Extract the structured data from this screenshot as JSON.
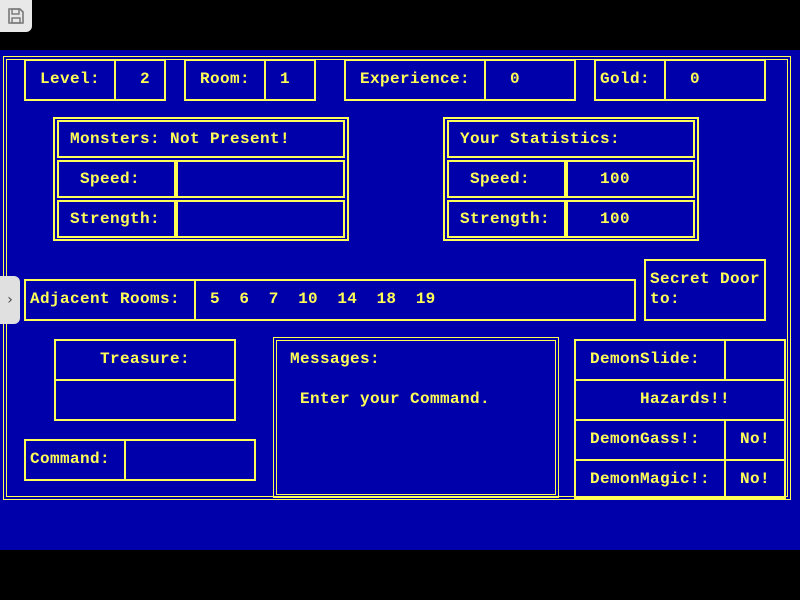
{
  "status": {
    "level_label": "Level:",
    "level": "2",
    "room_label": "Room:",
    "room": "1",
    "experience_label": "Experience:",
    "experience": "0",
    "gold_label": "Gold:",
    "gold": "0"
  },
  "monsters": {
    "title": "Monsters: Not Present!",
    "speed_label": "Speed:",
    "speed": "",
    "strength_label": "Strength:",
    "strength": ""
  },
  "stats": {
    "title": "Your Statistics:",
    "speed_label": "Speed:",
    "speed": "100",
    "strength_label": "Strength:",
    "strength": "100"
  },
  "adjacent": {
    "label": "Adjacent Rooms:",
    "rooms": "5  6  7  10  14  18  19"
  },
  "secret_door": {
    "label": "Secret Door\nto:"
  },
  "treasure": {
    "label": "Treasure:",
    "value": ""
  },
  "command": {
    "label": "Command:",
    "value": ""
  },
  "messages": {
    "label": "Messages:",
    "text": "Enter your Command."
  },
  "hazards": {
    "demonslide_label": "DemonSlide:",
    "demonslide": "",
    "title": "Hazards!!",
    "demongass_label": "DemonGass!:",
    "demongass": "No!",
    "demonmagic_label": "DemonMagic!:",
    "demonmagic": "No!"
  },
  "colors": {
    "background": "#0000aa",
    "text": "#ffff55"
  },
  "icons": {
    "save": "floppy-disk-icon",
    "side": "chevron-right-icon"
  }
}
